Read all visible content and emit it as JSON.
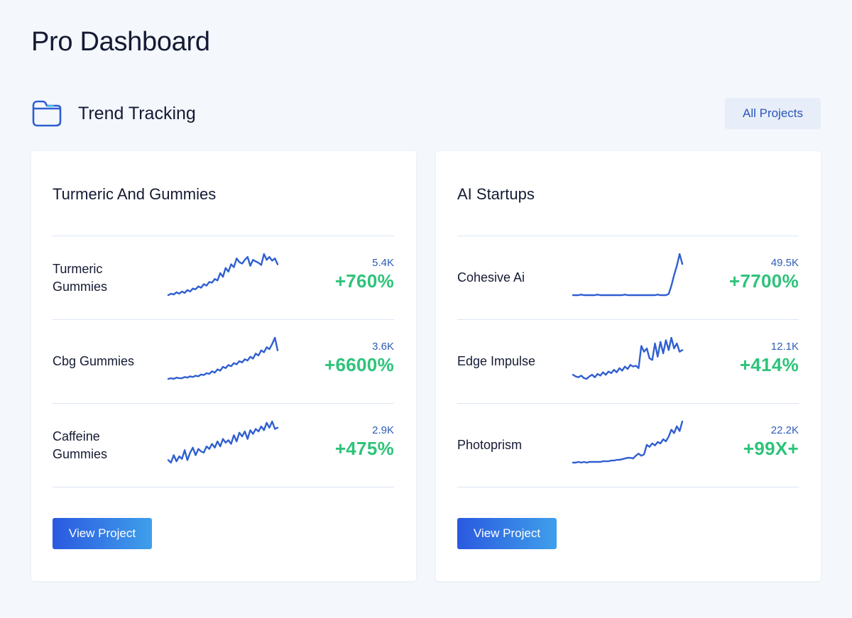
{
  "page": {
    "title": "Pro Dashboard"
  },
  "section": {
    "title": "Trend Tracking",
    "all_projects_label": "All Projects",
    "icon": "folder-icon"
  },
  "colors": {
    "background": "#f4f7fc",
    "accent": "#2a56b8",
    "sparkline": "#2f5fd0",
    "growth": "#2ec37a",
    "divider": "#dce6f3"
  },
  "projects": [
    {
      "title": "Turmeric And Gummies",
      "view_label": "View Project",
      "trends": [
        {
          "name": "Turmeric Gummies",
          "volume": "5.4K",
          "growth": "+760%",
          "series": [
            10,
            12,
            11,
            14,
            12,
            15,
            13,
            17,
            15,
            19,
            18,
            22,
            20,
            25,
            23,
            28,
            27,
            32,
            30,
            40,
            35,
            47,
            42,
            52,
            48,
            60,
            55,
            53,
            58,
            62,
            50,
            58,
            56,
            54,
            51,
            66,
            58,
            62,
            57,
            60,
            52
          ]
        },
        {
          "name": "Cbg Gummies",
          "volume": "3.6K",
          "growth": "+6600%",
          "series": [
            5,
            6,
            5,
            7,
            6,
            6,
            8,
            7,
            9,
            8,
            10,
            9,
            12,
            11,
            14,
            13,
            17,
            15,
            20,
            18,
            24,
            22,
            27,
            25,
            30,
            28,
            33,
            31,
            36,
            34,
            40,
            37,
            45,
            42,
            50,
            47,
            55,
            52,
            60,
            70,
            50
          ]
        },
        {
          "name": "Caffeine Gummies",
          "volume": "2.9K",
          "growth": "+475%",
          "series": [
            10,
            6,
            18,
            8,
            16,
            12,
            26,
            10,
            22,
            30,
            18,
            28,
            24,
            22,
            32,
            28,
            36,
            30,
            40,
            32,
            44,
            38,
            42,
            36,
            50,
            40,
            54,
            48,
            56,
            44,
            58,
            52,
            60,
            56,
            64,
            58,
            70,
            62,
            72,
            60,
            62
          ]
        }
      ]
    },
    {
      "title": "AI Startups",
      "view_label": "View Project",
      "trends": [
        {
          "name": "Cohesive Ai",
          "volume": "49.5K",
          "growth": "+7700%",
          "series": [
            2,
            2,
            2,
            3,
            2,
            2,
            2,
            2,
            2,
            3,
            2,
            2,
            2,
            2,
            2,
            2,
            2,
            2,
            2,
            3,
            2,
            2,
            2,
            2,
            2,
            2,
            2,
            2,
            2,
            2,
            2,
            3,
            2,
            2,
            2,
            4,
            18,
            36,
            52,
            72,
            55
          ]
        },
        {
          "name": "Edge Impulse",
          "volume": "12.1K",
          "growth": "+414%",
          "series": [
            10,
            8,
            7,
            9,
            6,
            5,
            8,
            10,
            7,
            11,
            9,
            13,
            10,
            14,
            12,
            16,
            13,
            18,
            15,
            20,
            17,
            22,
            20,
            21,
            18,
            45,
            38,
            42,
            30,
            28,
            48,
            32,
            50,
            36,
            52,
            40,
            55,
            42,
            48,
            38,
            40
          ]
        },
        {
          "name": "Photoprism",
          "volume": "22.2K",
          "growth": "+99X+",
          "series": [
            2,
            2,
            3,
            2,
            3,
            2,
            3,
            3,
            3,
            3,
            3,
            4,
            4,
            4,
            5,
            5,
            6,
            6,
            7,
            8,
            9,
            9,
            8,
            12,
            15,
            12,
            14,
            28,
            25,
            30,
            27,
            32,
            30,
            36,
            33,
            40,
            50,
            45,
            55,
            48,
            62
          ]
        }
      ]
    }
  ]
}
